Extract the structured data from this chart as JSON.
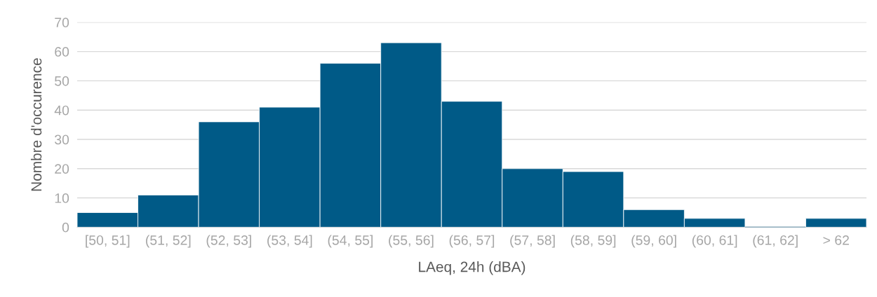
{
  "chart_data": {
    "type": "bar",
    "categories": [
      "[50, 51]",
      "(51, 52]",
      "(52, 53]",
      "(53, 54]",
      "(54, 55]",
      "(55, 56]",
      "(56, 57]",
      "(57, 58]",
      "(58, 59]",
      "(59, 60]",
      "(60, 61]",
      "(61, 62]",
      "> 62"
    ],
    "values": [
      5,
      11,
      36,
      41,
      56,
      63,
      43,
      20,
      19,
      6,
      3,
      0,
      3
    ],
    "color": "#005a87",
    "xlabel": "LAeq, 24h (dBA)",
    "ylabel": "Nombre d'occurence",
    "ylim": [
      0,
      70
    ],
    "yticks": [
      0,
      10,
      20,
      30,
      40,
      50,
      60,
      70
    ],
    "grid": "y"
  }
}
